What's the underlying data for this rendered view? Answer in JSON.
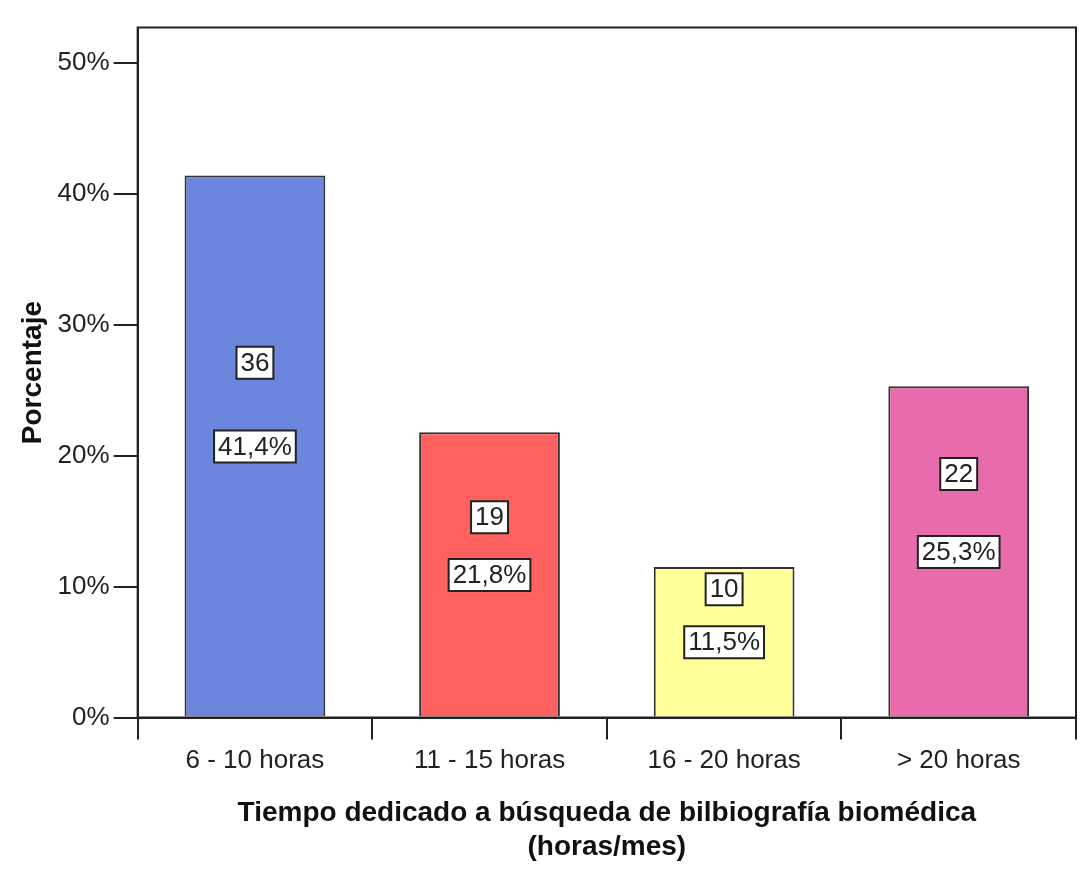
{
  "chart_data": {
    "type": "bar",
    "xlabel": "Tiempo dedicado a búsqueda de bilbiografía biomédica\n(horas/mes)",
    "ylabel": "Porcentaje",
    "categories": [
      "6 - 10 horas",
      "11 - 15 horas",
      "16 - 20 horas",
      "> 20 horas"
    ],
    "values": [
      41.4,
      21.8,
      11.5,
      25.3
    ],
    "colors": [
      "#6b86dc",
      "#ff6161",
      "#ffff99",
      "#e86cab"
    ],
    "value_labels": [
      "41,4%",
      "21,8%",
      "11,5%",
      "25,3%"
    ],
    "annotations": [
      {
        "text": "36",
        "x": "6 - 10 horas",
        "y": 27.1
      },
      {
        "text": "19",
        "x": "11 - 15 horas",
        "y": 15.3
      },
      {
        "text": "10",
        "x": "16 - 20 horas",
        "y": 9.8
      },
      {
        "text": "22",
        "x": "> 20 horas",
        "y": 18.6
      }
    ],
    "ylim": [
      0,
      52.7
    ],
    "yticks": [
      {
        "value": 0,
        "label": "0%"
      },
      {
        "value": 10,
        "label": "10%"
      },
      {
        "value": 20,
        "label": "20%"
      },
      {
        "value": 30,
        "label": "30%"
      },
      {
        "value": 40,
        "label": "40%"
      },
      {
        "value": 50,
        "label": "50%"
      }
    ],
    "grid": false,
    "legend": false
  }
}
